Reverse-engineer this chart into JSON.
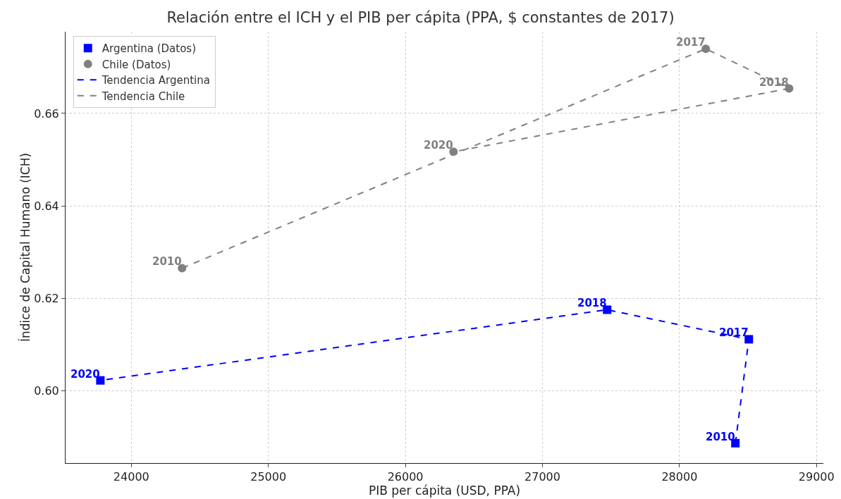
{
  "chart_data": {
    "type": "scatter",
    "title": "Relación entre el ICH y el PIB per cápita (PPA, $ constantes de 2017)",
    "xlabel": "PIB per cápita (USD, PPA)",
    "ylabel": "Índice de Capital Humano (ICH)",
    "xlim": [
      23520,
      29050
    ],
    "xticks": [
      24000,
      25000,
      26000,
      27000,
      28000,
      29000
    ],
    "ylim": [
      0.5843,
      0.6777
    ],
    "yticks": [
      {
        "value": 0.6,
        "label": "0.60"
      },
      0.62,
      0.64,
      0.66
    ],
    "grid": true,
    "legend": "top left",
    "series": [
      {
        "name": "Argentina (Datos)",
        "marker": "square",
        "color": "#0000ff",
        "x": [
          28408,
          28506,
          27472,
          23774
        ],
        "values": [
          0.5886,
          0.6111,
          0.6175,
          0.6022
        ]
      },
      {
        "name": "Chile (Datos)",
        "marker": "circle",
        "color": "#808080",
        "x": [
          24370,
          28192,
          28800,
          26351
        ],
        "values": [
          0.6265,
          0.674,
          0.6654,
          0.6517
        ]
      },
      {
        "name": "Tendencia Argentina",
        "type": "line",
        "marker": "none",
        "line_style": "dashed",
        "color": "#0000ff",
        "x": [
          28408,
          28506,
          27472,
          23774
        ],
        "values": [
          0.5886,
          0.6111,
          0.6175,
          0.6022
        ]
      },
      {
        "name": "Tendencia Chile",
        "type": "line",
        "marker": "none",
        "line_style": "dashed",
        "color": "#808080",
        "x": [
          24370,
          28192,
          28800,
          26351
        ],
        "values": [
          0.6265,
          0.674,
          0.6654,
          0.6517
        ]
      }
    ],
    "annotations": [
      {
        "text": "2010",
        "x": 28408,
        "y": 0.5886
      },
      {
        "text": "2017",
        "x": 28506,
        "y": 0.6111
      },
      {
        "text": "2018",
        "x": 27472,
        "y": 0.6175
      },
      {
        "text": "2020",
        "x": 23774,
        "y": 0.6022
      },
      {
        "text": "2010",
        "x": 24370,
        "y": 0.6265
      },
      {
        "text": "2017",
        "x": 28192,
        "y": 0.674
      },
      {
        "text": "2018",
        "x": 28800,
        "y": 0.6654
      },
      {
        "text": "2020",
        "x": 26351,
        "y": 0.6517
      }
    ]
  }
}
